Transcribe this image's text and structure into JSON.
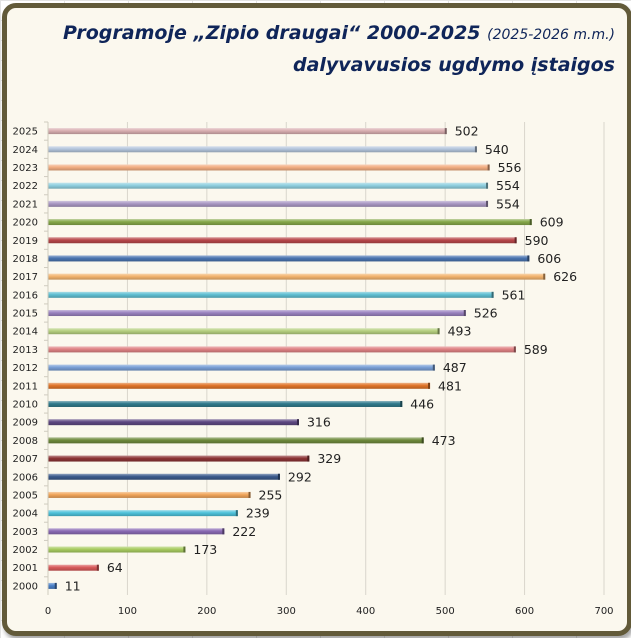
{
  "chart_data": {
    "type": "bar",
    "orientation": "horizontal",
    "title": "Programoje „Zipio draugai“ 2000-2025",
    "title_note": "(2025-2026 m.m.)",
    "subtitle": "dalyvavusios ugdymo įstaigos",
    "xlabel": "",
    "ylabel": "",
    "xlim": [
      0,
      700
    ],
    "xticks": [
      0,
      100,
      200,
      300,
      400,
      500,
      600,
      700
    ],
    "grid": true,
    "legend": "none",
    "categories": [
      "2025",
      "2024",
      "2023",
      "2022",
      "2021",
      "2020",
      "2019",
      "2018",
      "2017",
      "2016",
      "2015",
      "2014",
      "2013",
      "2012",
      "2011",
      "2010",
      "2009",
      "2008",
      "2007",
      "2006",
      "2005",
      "2004",
      "2003",
      "2002",
      "2001",
      "2000"
    ],
    "values": [
      502,
      540,
      556,
      554,
      554,
      609,
      590,
      606,
      626,
      561,
      526,
      493,
      589,
      487,
      481,
      446,
      316,
      473,
      329,
      292,
      255,
      239,
      222,
      173,
      64,
      11
    ],
    "colors": [
      "#d8aeb0",
      "#b3c5dc",
      "#f3ae82",
      "#8fcfdf",
      "#aa98c4",
      "#86a84a",
      "#b8474a",
      "#4b74b0",
      "#f3b46e",
      "#5fbfd2",
      "#9a82bf",
      "#b5cf7e",
      "#e08284",
      "#7aa0d6",
      "#e07428",
      "#2f7a8c",
      "#5e4882",
      "#6e8a3c",
      "#8c3436",
      "#3b5a8c",
      "#f0a55a",
      "#4ec2da",
      "#8a6ab4",
      "#a8cc60",
      "#d85a5a",
      "#4a80c8"
    ]
  }
}
